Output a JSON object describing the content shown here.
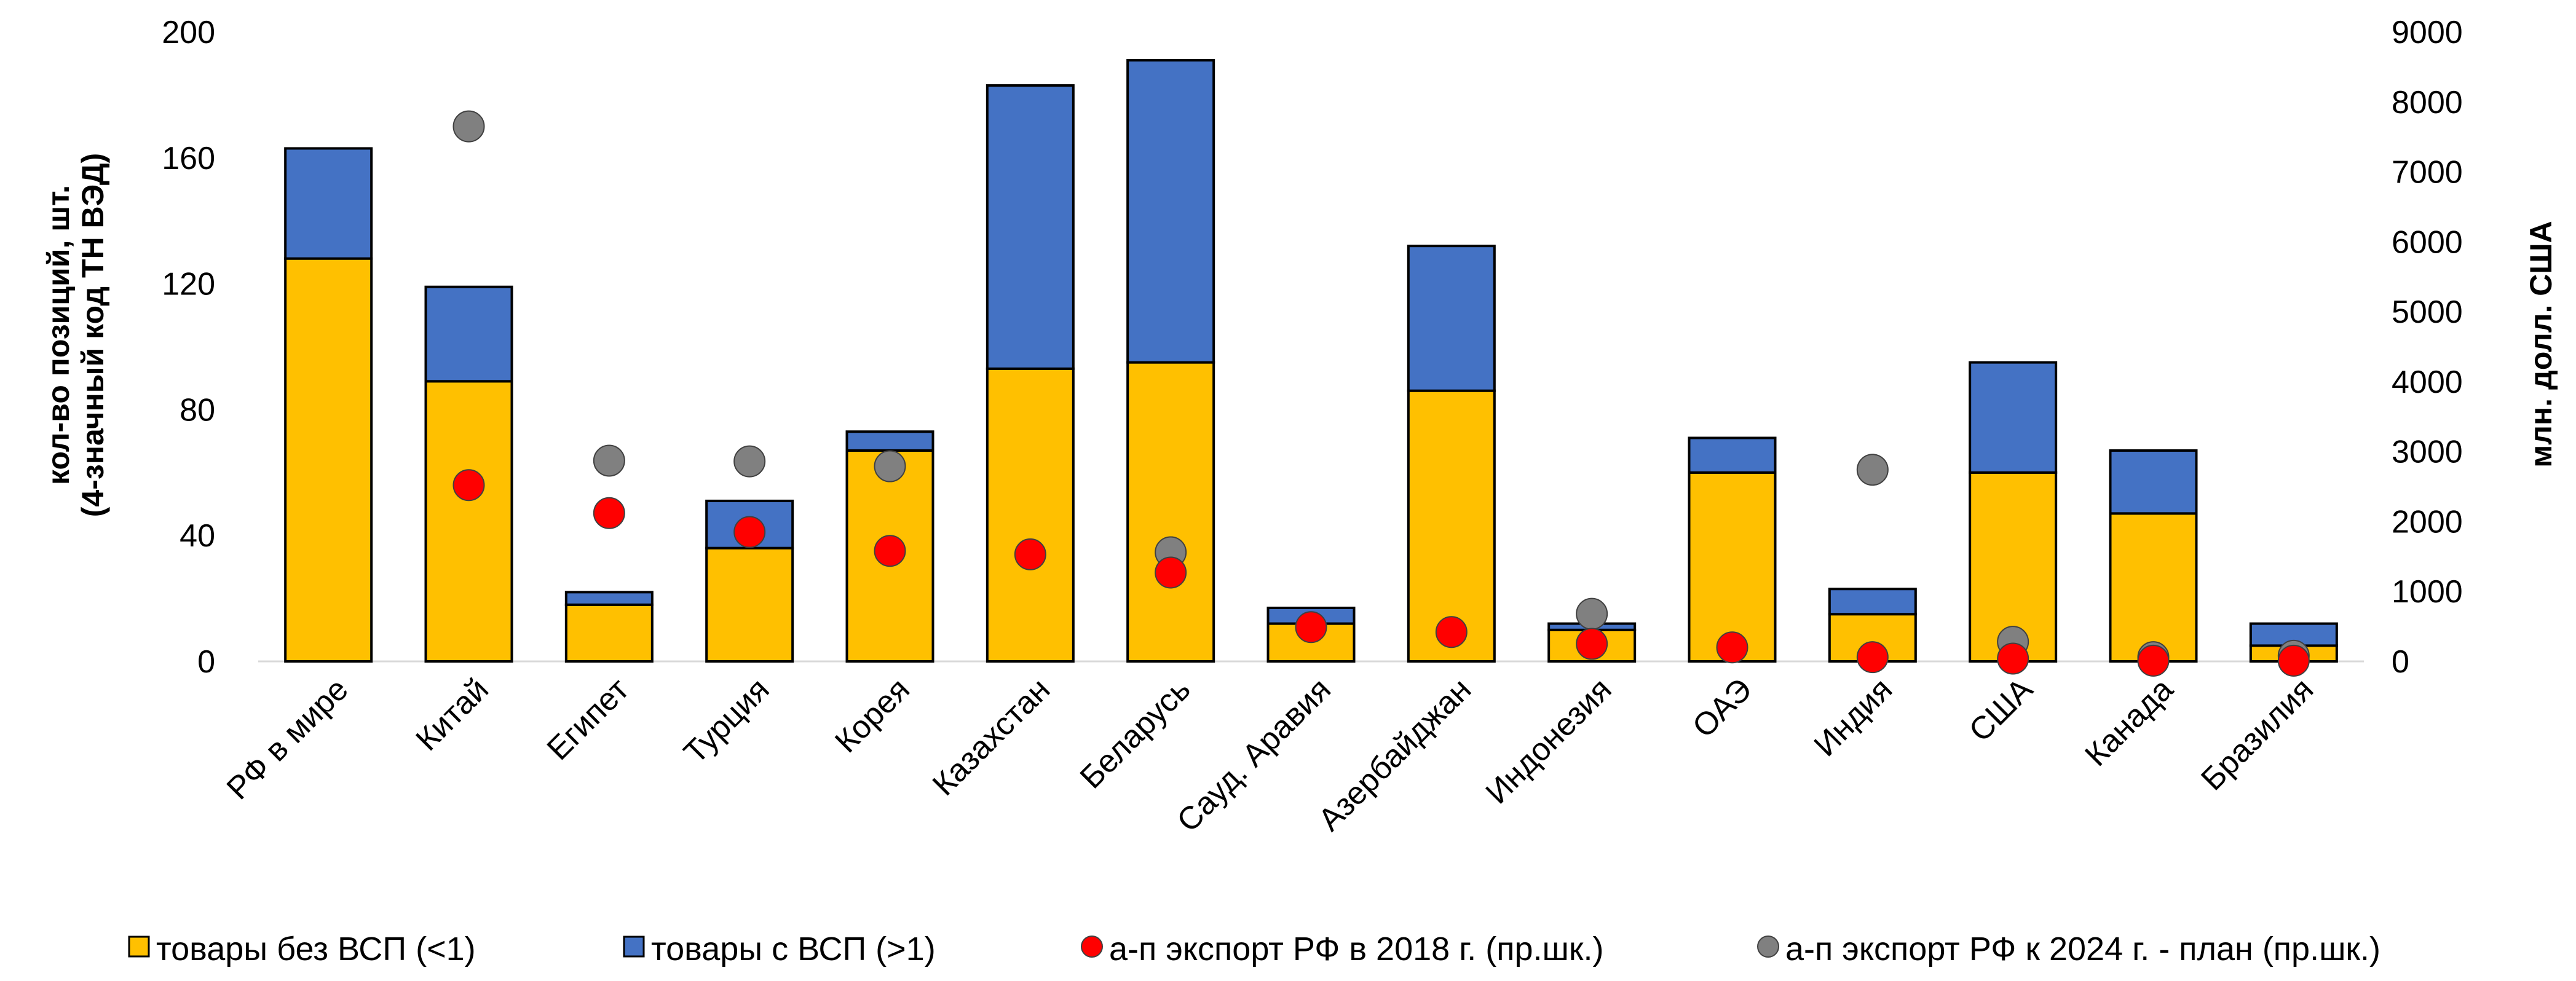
{
  "chart_data": {
    "type": "bar",
    "stacked": true,
    "grid": false,
    "legend_position": "bottom",
    "categories": [
      "РФ в мире",
      "Китай",
      "Египет",
      "Турция",
      "Корея",
      "Казахстан",
      "Беларусь",
      "Сауд. Аравия",
      "Азербайджан",
      "Индонезия",
      "ОАЭ",
      "Индия",
      "США",
      "Канада",
      "Бразилия"
    ],
    "ylabel_left": [
      "кол-во позиций, шт.",
      "(4-значный код ТН ВЭД)"
    ],
    "ylabel_right": "млн. долл. США",
    "y_left": {
      "min": 0,
      "max": 200,
      "ticks": [
        0,
        40,
        80,
        120,
        160,
        200
      ]
    },
    "y_right": {
      "min": 0,
      "max": 9000,
      "ticks": [
        0,
        1000,
        2000,
        3000,
        4000,
        5000,
        6000,
        7000,
        8000,
        9000
      ]
    },
    "bar_series": [
      {
        "name": "товары без ВСП (<1)",
        "color": "#FFC000",
        "axis": "left",
        "values": [
          128,
          89,
          18,
          36,
          67,
          93,
          95,
          12,
          86,
          10,
          60,
          15,
          60,
          47,
          5
        ]
      },
      {
        "name": "товары с ВСП (>1)",
        "color": "#4472C4",
        "axis": "left",
        "values": [
          35,
          30,
          4,
          15,
          6,
          90,
          96,
          5,
          46,
          2,
          11,
          8,
          35,
          20,
          7
        ]
      }
    ],
    "point_series": [
      {
        "name": "а-п экспорт РФ в 2018 г. (пр.шк.)",
        "color": "#FF0000",
        "axis": "right",
        "values": [
          null,
          2520,
          2120,
          1850,
          1580,
          1530,
          1270,
          490,
          420,
          250,
          200,
          60,
          40,
          10,
          10
        ]
      },
      {
        "name": "а-п экспорт РФ к 2024 г. - план (пр.шк.)",
        "color": "#808080",
        "axis": "right",
        "values": [
          null,
          7650,
          2870,
          2860,
          2790,
          null,
          1560,
          null,
          null,
          680,
          null,
          2740,
          280,
          60,
          80
        ]
      }
    ]
  }
}
